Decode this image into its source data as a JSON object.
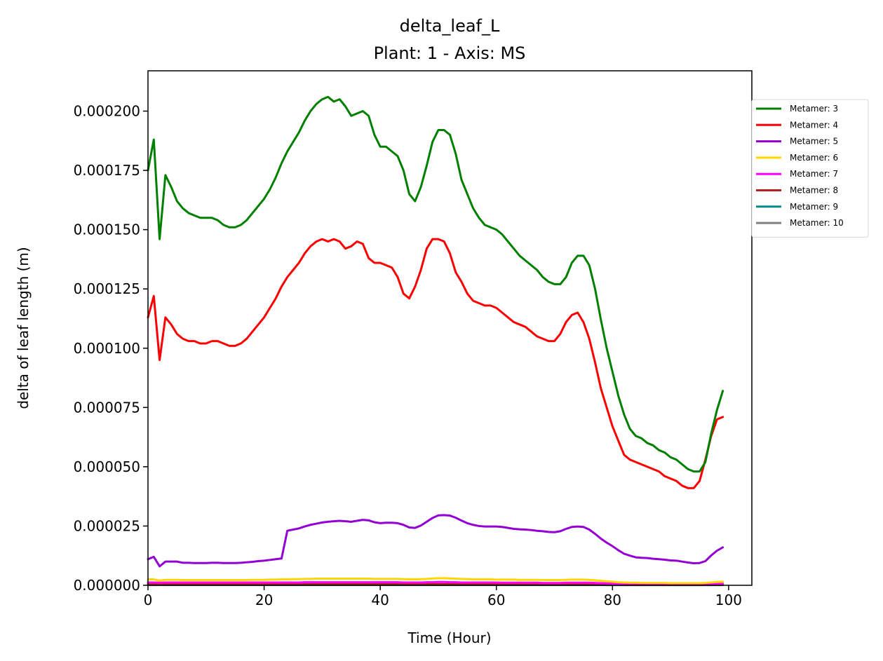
{
  "chart_data": {
    "type": "line",
    "title": "delta_leaf_L",
    "subtitle": "Plant: 1 - Axis: MS",
    "xlabel": "Time (Hour)",
    "ylabel": "delta of leaf length (m)",
    "xlim": [
      0,
      104
    ],
    "ylim": [
      0,
      0.000217
    ],
    "x_ticks": [
      0,
      20,
      40,
      60,
      80,
      100
    ],
    "x_tick_labels": [
      "0",
      "20",
      "40",
      "60",
      "80",
      "100"
    ],
    "y_ticks": [
      0,
      2.5e-05,
      5e-05,
      7.5e-05,
      0.0001,
      0.000125,
      0.00015,
      0.000175,
      0.0002
    ],
    "y_tick_labels": [
      "0.000000",
      "0.000025",
      "0.000050",
      "0.000075",
      "0.000100",
      "0.000125",
      "0.000150",
      "0.000175",
      "0.000200"
    ],
    "grid": false,
    "legend_position": "outside-right-top",
    "x": [
      0,
      1,
      2,
      3,
      4,
      5,
      6,
      7,
      8,
      9,
      10,
      11,
      12,
      13,
      14,
      15,
      16,
      17,
      18,
      19,
      20,
      21,
      22,
      23,
      24,
      25,
      26,
      27,
      28,
      29,
      30,
      31,
      32,
      33,
      34,
      35,
      36,
      37,
      38,
      39,
      40,
      41,
      42,
      43,
      44,
      45,
      46,
      47,
      48,
      49,
      50,
      51,
      52,
      53,
      54,
      55,
      56,
      57,
      58,
      59,
      60,
      61,
      62,
      63,
      64,
      65,
      66,
      67,
      68,
      69,
      70,
      71,
      72,
      73,
      74,
      75,
      76,
      77,
      78,
      79,
      80,
      81,
      82,
      83,
      84,
      85,
      86,
      87,
      88,
      89,
      90,
      91,
      92,
      93,
      94,
      95,
      96,
      97,
      98,
      99
    ],
    "series": [
      {
        "name": "Metamer: 3",
        "color": "#008000",
        "values": [
          0.000175,
          0.000188,
          0.000146,
          0.000173,
          0.000168,
          0.000162,
          0.000159,
          0.000157,
          0.000156,
          0.000155,
          0.000155,
          0.000155,
          0.000154,
          0.000152,
          0.000151,
          0.000151,
          0.000152,
          0.000154,
          0.000157,
          0.00016,
          0.000163,
          0.000167,
          0.000172,
          0.000178,
          0.000183,
          0.000187,
          0.000191,
          0.000196,
          0.0002,
          0.000203,
          0.000205,
          0.000206,
          0.000204,
          0.000205,
          0.000202,
          0.000198,
          0.000199,
          0.0002,
          0.000198,
          0.00019,
          0.000185,
          0.000185,
          0.000183,
          0.000181,
          0.000175,
          0.000165,
          0.000162,
          0.000168,
          0.000177,
          0.000187,
          0.000192,
          0.000192,
          0.00019,
          0.000182,
          0.000171,
          0.000165,
          0.000159,
          0.000155,
          0.000152,
          0.000151,
          0.00015,
          0.000148,
          0.000145,
          0.000142,
          0.000139,
          0.000137,
          0.000135,
          0.000133,
          0.00013,
          0.000128,
          0.000127,
          0.000127,
          0.00013,
          0.000136,
          0.000139,
          0.000139,
          0.000135,
          0.000125,
          0.000112,
          0.0001,
          9e-05,
          8e-05,
          7.2e-05,
          6.6e-05,
          6.3e-05,
          6.2e-05,
          6e-05,
          5.9e-05,
          5.7e-05,
          5.6e-05,
          5.4e-05,
          5.3e-05,
          5.1e-05,
          4.9e-05,
          4.8e-05,
          4.8e-05,
          5.2e-05,
          6.4e-05,
          7.4e-05,
          8.2e-05
        ]
      },
      {
        "name": "Metamer: 4",
        "color": "#ff0000",
        "values": [
          0.000113,
          0.000122,
          9.5e-05,
          0.000113,
          0.00011,
          0.000106,
          0.000104,
          0.000103,
          0.000103,
          0.000102,
          0.000102,
          0.000103,
          0.000103,
          0.000102,
          0.000101,
          0.000101,
          0.000102,
          0.000104,
          0.000107,
          0.00011,
          0.000113,
          0.000117,
          0.000121,
          0.000126,
          0.00013,
          0.000133,
          0.000136,
          0.00014,
          0.000143,
          0.000145,
          0.000146,
          0.000145,
          0.000146,
          0.000145,
          0.000142,
          0.000143,
          0.000145,
          0.000144,
          0.000138,
          0.000136,
          0.000136,
          0.000135,
          0.000134,
          0.00013,
          0.000123,
          0.000121,
          0.000126,
          0.000133,
          0.000142,
          0.000146,
          0.000146,
          0.000145,
          0.00014,
          0.000132,
          0.000128,
          0.000123,
          0.00012,
          0.000119,
          0.000118,
          0.000118,
          0.000117,
          0.000115,
          0.000113,
          0.000111,
          0.00011,
          0.000109,
          0.000107,
          0.000105,
          0.000104,
          0.000103,
          0.000103,
          0.000106,
          0.000111,
          0.000114,
          0.000115,
          0.000111,
          0.000104,
          9.4e-05,
          8.3e-05,
          7.5e-05,
          6.7e-05,
          6.1e-05,
          5.5e-05,
          5.3e-05,
          5.2e-05,
          5.1e-05,
          5e-05,
          4.9e-05,
          4.8e-05,
          4.6e-05,
          4.5e-05,
          4.4e-05,
          4.2e-05,
          4.1e-05,
          4.1e-05,
          4.4e-05,
          5.3e-05,
          6.3e-05,
          7e-05,
          7.1e-05
        ]
      },
      {
        "name": "Metamer: 5",
        "color": "#9400d3",
        "values": [
          1.1e-05,
          1.2e-05,
          8e-06,
          1e-05,
          1e-05,
          1e-05,
          9.5e-06,
          9.5e-06,
          9.4e-06,
          9.4e-06,
          9.4e-06,
          9.5e-06,
          9.5e-06,
          9.4e-06,
          9.4e-06,
          9.4e-06,
          9.5e-06,
          9.7e-06,
          9.9e-06,
          1.02e-05,
          1.04e-05,
          1.07e-05,
          1.1e-05,
          1.13e-05,
          2.3e-05,
          2.35e-05,
          2.4e-05,
          2.48e-05,
          2.55e-05,
          2.6e-05,
          2.65e-05,
          2.68e-05,
          2.7e-05,
          2.72e-05,
          2.7e-05,
          2.68e-05,
          2.72e-05,
          2.76e-05,
          2.74e-05,
          2.66e-05,
          2.62e-05,
          2.64e-05,
          2.64e-05,
          2.62e-05,
          2.55e-05,
          2.44e-05,
          2.42e-05,
          2.52e-05,
          2.68e-05,
          2.84e-05,
          2.95e-05,
          2.96e-05,
          2.94e-05,
          2.85e-05,
          2.73e-05,
          2.62e-05,
          2.55e-05,
          2.5e-05,
          2.48e-05,
          2.48e-05,
          2.48e-05,
          2.46e-05,
          2.42e-05,
          2.38e-05,
          2.36e-05,
          2.35e-05,
          2.33e-05,
          2.3e-05,
          2.28e-05,
          2.25e-05,
          2.24e-05,
          2.28e-05,
          2.38e-05,
          2.46e-05,
          2.48e-05,
          2.46e-05,
          2.35e-05,
          2.17e-05,
          1.97e-05,
          1.8e-05,
          1.65e-05,
          1.48e-05,
          1.33e-05,
          1.25e-05,
          1.18e-05,
          1.16e-05,
          1.15e-05,
          1.12e-05,
          1.1e-05,
          1.08e-05,
          1.05e-05,
          1.04e-05,
          1e-05,
          9.6e-06,
          9.3e-06,
          9.4e-06,
          1.02e-05,
          1.26e-05,
          1.46e-05,
          1.6e-05
        ]
      },
      {
        "name": "Metamer: 6",
        "color": "#ffd700",
        "values": [
          2.5e-06,
          2.5e-06,
          2e-06,
          2.3e-06,
          2.3e-06,
          2.3e-06,
          2.2e-06,
          2.2e-06,
          2.2e-06,
          2.2e-06,
          2.2e-06,
          2.2e-06,
          2.2e-06,
          2.2e-06,
          2.2e-06,
          2.2e-06,
          2.2e-06,
          2.2e-06,
          2.3e-06,
          2.3e-06,
          2.3e-06,
          2.4e-06,
          2.4e-06,
          2.5e-06,
          2.5e-06,
          2.6e-06,
          2.6e-06,
          2.7e-06,
          2.7e-06,
          2.8e-06,
          2.8e-06,
          2.8e-06,
          2.8e-06,
          2.8e-06,
          2.8e-06,
          2.8e-06,
          2.8e-06,
          2.8e-06,
          2.8e-06,
          2.7e-06,
          2.7e-06,
          2.7e-06,
          2.7e-06,
          2.7e-06,
          2.6e-06,
          2.5e-06,
          2.5e-06,
          2.6e-06,
          2.7e-06,
          2.9e-06,
          3e-06,
          3e-06,
          2.9e-06,
          2.8e-06,
          2.7e-06,
          2.6e-06,
          2.5e-06,
          2.5e-06,
          2.5e-06,
          2.5e-06,
          2.4e-06,
          2.4e-06,
          2.4e-06,
          2.4e-06,
          2.3e-06,
          2.3e-06,
          2.3e-06,
          2.3e-06,
          2.2e-06,
          2.2e-06,
          2.2e-06,
          2.2e-06,
          2.3e-06,
          2.4e-06,
          2.4e-06,
          2.4e-06,
          2.3e-06,
          2.1e-06,
          1.9e-06,
          1.7e-06,
          1.5e-06,
          1.3e-06,
          1.2e-06,
          1.1e-06,
          1.1e-06,
          1e-06,
          1e-06,
          1e-06,
          1e-06,
          1e-06,
          9e-07,
          9e-07,
          9e-07,
          9e-07,
          9e-07,
          9e-07,
          1e-06,
          1.2e-06,
          1.4e-06,
          1.5e-06
        ]
      },
      {
        "name": "Metamer: 7",
        "color": "#ff00ff",
        "values": [
          1.2e-06,
          1.2e-06,
          1.1e-06,
          1.2e-06,
          1.2e-06,
          1.2e-06,
          1.2e-06,
          1.2e-06,
          1.2e-06,
          1.2e-06,
          1.2e-06,
          1.2e-06,
          1.2e-06,
          1.2e-06,
          1.2e-06,
          1.2e-06,
          1.2e-06,
          1.2e-06,
          1.2e-06,
          1.2e-06,
          1.2e-06,
          1.2e-06,
          1.2e-06,
          1.2e-06,
          1.2e-06,
          1.2e-06,
          1.2e-06,
          1.3e-06,
          1.3e-06,
          1.3e-06,
          1.3e-06,
          1.3e-06,
          1.3e-06,
          1.3e-06,
          1.3e-06,
          1.3e-06,
          1.3e-06,
          1.3e-06,
          1.3e-06,
          1.3e-06,
          1.3e-06,
          1.3e-06,
          1.3e-06,
          1.3e-06,
          1.2e-06,
          1.2e-06,
          1.2e-06,
          1.2e-06,
          1.3e-06,
          1.3e-06,
          1.4e-06,
          1.4e-06,
          1.3e-06,
          1.3e-06,
          1.2e-06,
          1.2e-06,
          1.2e-06,
          1.2e-06,
          1.2e-06,
          1.2e-06,
          1.2e-06,
          1.1e-06,
          1.1e-06,
          1.1e-06,
          1.1e-06,
          1.1e-06,
          1.1e-06,
          1.1e-06,
          1e-06,
          1e-06,
          1e-06,
          1e-06,
          1.1e-06,
          1.1e-06,
          1.1e-06,
          1.1e-06,
          1.1e-06,
          1e-06,
          9e-07,
          8e-07,
          7e-07,
          6e-07,
          5e-07,
          5e-07,
          5e-07,
          5e-07,
          5e-07,
          5e-07,
          5e-07,
          5e-07,
          4e-07,
          4e-07,
          4e-07,
          4e-07,
          4e-07,
          4e-07,
          5e-07,
          6e-07,
          7e-07,
          7e-07
        ]
      },
      {
        "name": "Metamer: 8",
        "color": "#b22222",
        "values": [
          5e-07,
          5e-07,
          5e-07,
          5e-07,
          5e-07,
          5e-07,
          5e-07,
          5e-07,
          5e-07,
          5e-07,
          5e-07,
          5e-07,
          5e-07,
          5e-07,
          5e-07,
          5e-07,
          5e-07,
          5e-07,
          5e-07,
          5e-07,
          5e-07,
          5e-07,
          5e-07,
          5e-07,
          5e-07,
          5e-07,
          5e-07,
          5e-07,
          5e-07,
          5e-07,
          5e-07,
          5e-07,
          5e-07,
          5e-07,
          5e-07,
          5e-07,
          5e-07,
          5e-07,
          5e-07,
          5e-07,
          5e-07,
          5e-07,
          5e-07,
          5e-07,
          5e-07,
          5e-07,
          5e-07,
          5e-07,
          5e-07,
          5e-07,
          5e-07,
          5e-07,
          5e-07,
          5e-07,
          5e-07,
          5e-07,
          5e-07,
          5e-07,
          5e-07,
          5e-07,
          5e-07,
          5e-07,
          5e-07,
          5e-07,
          5e-07,
          5e-07,
          5e-07,
          5e-07,
          5e-07,
          5e-07,
          5e-07,
          5e-07,
          5e-07,
          5e-07,
          5e-07,
          5e-07,
          5e-07,
          4e-07,
          4e-07,
          3e-07,
          3e-07,
          3e-07,
          2e-07,
          2e-07,
          2e-07,
          2e-07,
          2e-07,
          2e-07,
          2e-07,
          2e-07,
          2e-07,
          2e-07,
          2e-07,
          2e-07,
          2e-07,
          2e-07,
          2e-07,
          2e-07,
          3e-07,
          3e-07
        ]
      },
      {
        "name": "Metamer: 9",
        "color": "#008b8b",
        "values": [
          2e-07,
          2e-07,
          2e-07,
          2e-07,
          2e-07,
          2e-07,
          2e-07,
          2e-07,
          2e-07,
          2e-07,
          2e-07,
          2e-07,
          2e-07,
          2e-07,
          2e-07,
          2e-07,
          2e-07,
          2e-07,
          2e-07,
          2e-07,
          2e-07,
          2e-07,
          2e-07,
          2e-07,
          2e-07,
          2e-07,
          2e-07,
          2e-07,
          2e-07,
          2e-07,
          2e-07,
          2e-07,
          2e-07,
          2e-07,
          2e-07,
          2e-07,
          2e-07,
          2e-07,
          2e-07,
          2e-07,
          2e-07,
          2e-07,
          2e-07,
          2e-07,
          2e-07,
          2e-07,
          2e-07,
          2e-07,
          2e-07,
          2e-07,
          2e-07,
          2e-07,
          2e-07,
          2e-07,
          2e-07,
          2e-07,
          2e-07,
          2e-07,
          2e-07,
          2e-07,
          2e-07,
          2e-07,
          2e-07,
          2e-07,
          2e-07,
          2e-07,
          2e-07,
          2e-07,
          2e-07,
          2e-07,
          2e-07,
          2e-07,
          2e-07,
          2e-07,
          2e-07,
          2e-07,
          2e-07,
          2e-07,
          2e-07,
          1e-07,
          1e-07,
          1e-07,
          1e-07,
          1e-07,
          1e-07,
          1e-07,
          1e-07,
          1e-07,
          1e-07,
          1e-07,
          1e-07,
          1e-07,
          1e-07,
          1e-07,
          1e-07,
          1e-07,
          1e-07,
          1e-07,
          1e-07,
          1e-07
        ]
      },
      {
        "name": "Metamer: 10",
        "color": "#808080",
        "values": [
          1e-07,
          1e-07,
          1e-07,
          1e-07,
          1e-07,
          1e-07,
          1e-07,
          1e-07,
          1e-07,
          1e-07,
          1e-07,
          1e-07,
          1e-07,
          1e-07,
          1e-07,
          1e-07,
          1e-07,
          1e-07,
          1e-07,
          1e-07,
          1e-07,
          1e-07,
          1e-07,
          1e-07,
          1e-07,
          1e-07,
          1e-07,
          1e-07,
          1e-07,
          1e-07,
          1e-07,
          1e-07,
          1e-07,
          1e-07,
          1e-07,
          1e-07,
          1e-07,
          1e-07,
          1e-07,
          1e-07,
          1e-07,
          1e-07,
          1e-07,
          1e-07,
          1e-07,
          1e-07,
          1e-07,
          1e-07,
          1e-07,
          1e-07,
          1e-07,
          1e-07,
          1e-07,
          1e-07,
          1e-07,
          1e-07,
          1e-07,
          1e-07,
          1e-07,
          1e-07,
          1e-07,
          1e-07,
          1e-07,
          1e-07,
          1e-07,
          1e-07,
          1e-07,
          1e-07,
          1e-07,
          1e-07,
          1e-07,
          1e-07,
          1e-07,
          1e-07,
          1e-07,
          1e-07,
          1e-07,
          1e-07,
          1e-07,
          1e-07,
          1e-07,
          1e-07,
          1e-07,
          1e-07,
          1e-07,
          1e-07,
          1e-07,
          1e-07,
          1e-07,
          1e-07,
          1e-07,
          1e-07,
          1e-07,
          1e-07,
          1e-07,
          1e-07,
          1e-07,
          1e-07,
          1e-07,
          1e-07
        ]
      }
    ]
  }
}
